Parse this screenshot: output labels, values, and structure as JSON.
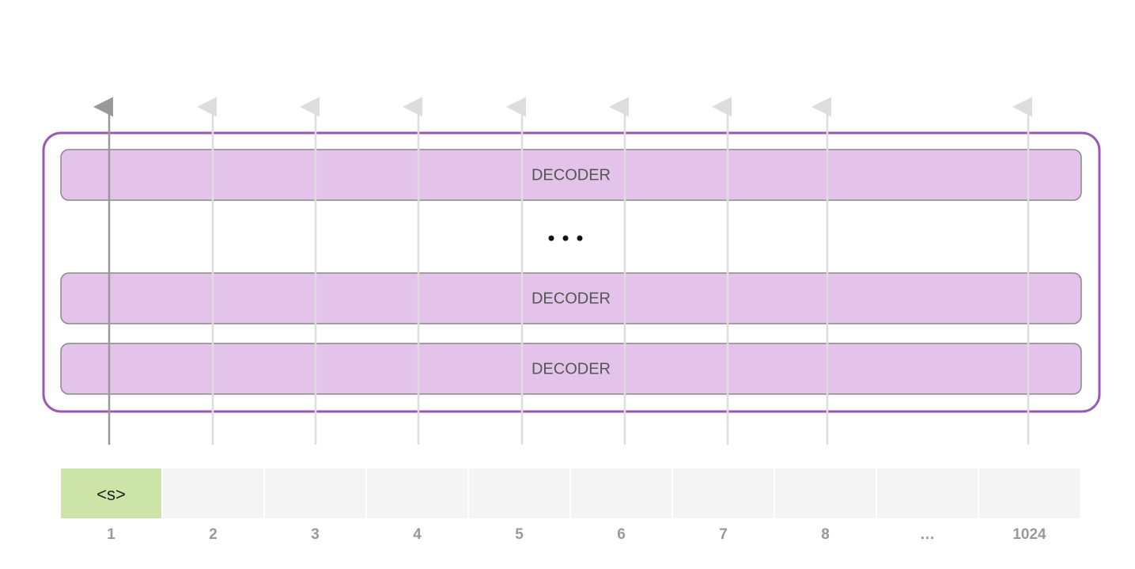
{
  "decoders": [
    {
      "label": "DECODER"
    },
    {
      "label": "DECODER"
    },
    {
      "label": "DECODER"
    }
  ],
  "tokens": [
    {
      "text": "<s>",
      "position": "1"
    },
    {
      "position": "2"
    },
    {
      "position": "3"
    },
    {
      "position": "4"
    },
    {
      "position": "5"
    },
    {
      "position": "6"
    },
    {
      "position": "7"
    },
    {
      "position": "8"
    },
    {
      "position": "…"
    },
    {
      "position": "1024"
    }
  ]
}
